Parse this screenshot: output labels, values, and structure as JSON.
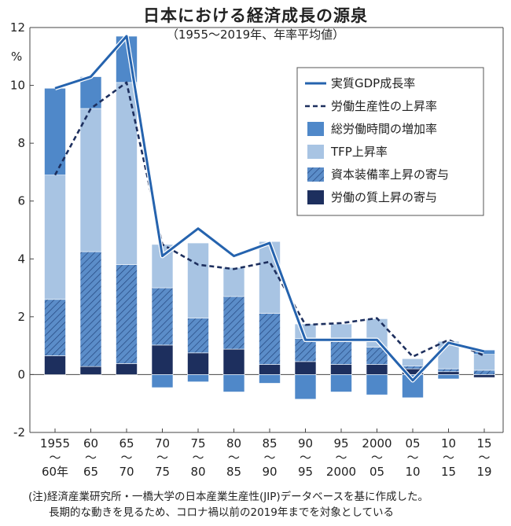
{
  "title": "日本における経済成長の源泉",
  "subtitle": "（1955〜2019年、年率平均値）",
  "notes": [
    "(注)経済産業研究所・一橋大学の日本産業生産性(JIP)データベースを基に作成した。",
    "長期的な動きを見るため、コロナ禍以前の2019年までを対象としている"
  ],
  "chart_data": {
    "type": "bar",
    "stacked": true,
    "y_unit": "%",
    "ylim": [
      -2,
      12
    ],
    "yticks": [
      -2,
      0,
      2,
      4,
      6,
      8,
      10,
      12
    ],
    "grid": false,
    "legend_position": "top-right",
    "categories": [
      {
        "top": "1955",
        "mid": "〜",
        "bottom": "60年"
      },
      {
        "top": "60",
        "mid": "〜",
        "bottom": "65"
      },
      {
        "top": "65",
        "mid": "〜",
        "bottom": "70"
      },
      {
        "top": "70",
        "mid": "〜",
        "bottom": "75"
      },
      {
        "top": "75",
        "mid": "〜",
        "bottom": "80"
      },
      {
        "top": "80",
        "mid": "〜",
        "bottom": "85"
      },
      {
        "top": "85",
        "mid": "〜",
        "bottom": "90"
      },
      {
        "top": "90",
        "mid": "〜",
        "bottom": "95"
      },
      {
        "top": "95",
        "mid": "〜",
        "bottom": "2000"
      },
      {
        "top": "2000",
        "mid": "〜",
        "bottom": "05"
      },
      {
        "top": "05",
        "mid": "〜",
        "bottom": "10"
      },
      {
        "top": "10",
        "mid": "〜",
        "bottom": "15"
      },
      {
        "top": "15",
        "mid": "〜",
        "bottom": "19"
      }
    ],
    "series": [
      {
        "name": "労働の質上昇の寄与",
        "kind": "bar",
        "color": "#1d2f5e",
        "values": [
          0.65,
          0.28,
          0.38,
          1.02,
          0.75,
          0.88,
          0.35,
          0.45,
          0.35,
          0.35,
          0.2,
          0.1,
          -0.1
        ]
      },
      {
        "name": "資本装備率上昇の寄与",
        "kind": "bar",
        "color": "#5b8dc9",
        "hatched": true,
        "values": [
          1.95,
          3.97,
          3.42,
          1.98,
          1.2,
          1.82,
          1.77,
          0.8,
          0.8,
          0.6,
          0.1,
          0.1,
          0.15
        ]
      },
      {
        "name": "TFP上昇率",
        "kind": "bar",
        "color": "#a8c4e3",
        "values": [
          4.3,
          4.95,
          6.3,
          1.5,
          2.6,
          1.0,
          2.48,
          0.5,
          0.6,
          0.98,
          0.25,
          0.95,
          0.55
        ]
      },
      {
        "name": "総労働時間の増加率",
        "kind": "bar",
        "color": "#4f88c9",
        "values": [
          3.0,
          1.1,
          1.6,
          -0.45,
          -0.25,
          -0.6,
          -0.3,
          -0.85,
          -0.6,
          -0.7,
          -0.8,
          -0.15,
          0.15
        ]
      },
      {
        "name": "労働生産性の上昇率",
        "kind": "line",
        "dashed": true,
        "color": "#1d2f5e",
        "values": [
          6.9,
          9.2,
          10.1,
          4.5,
          3.8,
          3.65,
          3.9,
          1.72,
          1.78,
          1.95,
          0.62,
          1.2,
          0.65
        ]
      },
      {
        "name": "実質GDP成長率",
        "kind": "line",
        "dashed": false,
        "color": "#2563ae",
        "values": [
          9.9,
          10.3,
          11.7,
          4.1,
          5.05,
          4.1,
          4.55,
          1.2,
          1.2,
          1.2,
          -0.2,
          1.1,
          0.8
        ]
      }
    ]
  }
}
